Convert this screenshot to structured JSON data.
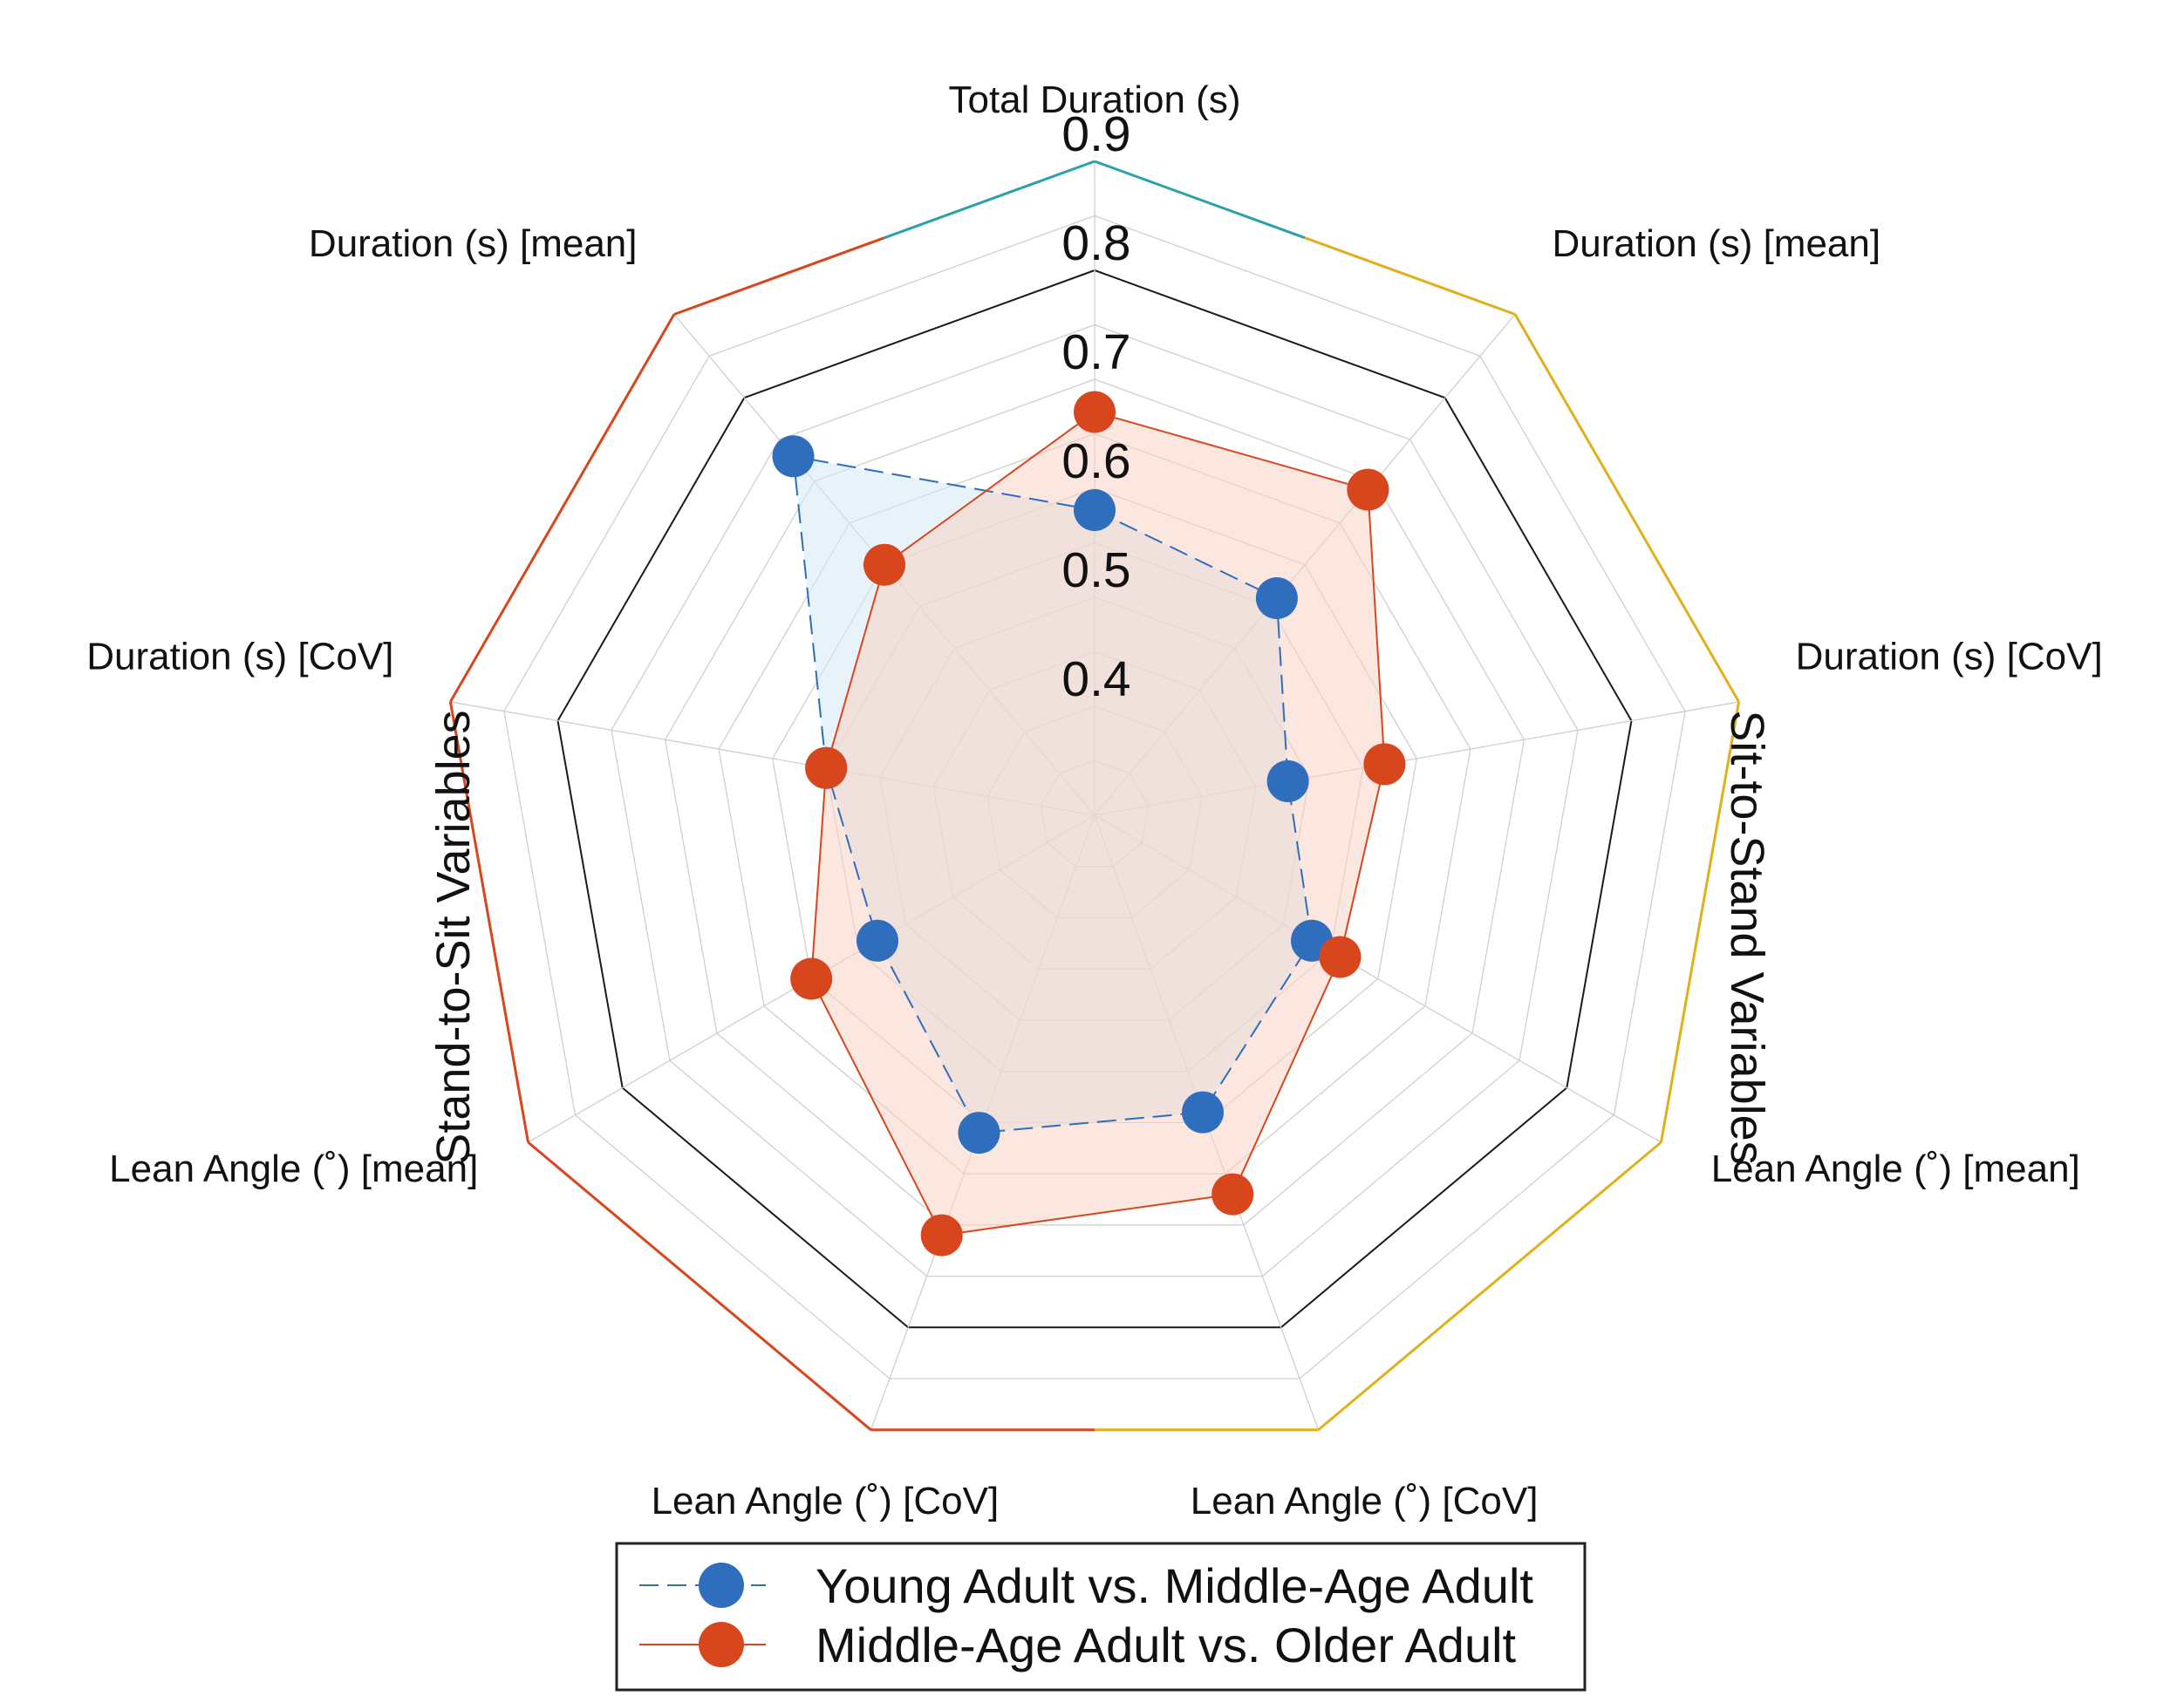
{
  "chart_data": {
    "type": "radar",
    "title": "",
    "axes": [
      {
        "label": "Total Duration (s)",
        "color": "#111111"
      },
      {
        "label": "Duration (s) [mean]",
        "color": "#d8461d"
      },
      {
        "label": "Duration (s) [CoV]",
        "color": "#111111"
      },
      {
        "label": "Lean Angle (˚) [mean]",
        "color": "#111111"
      },
      {
        "label": "Lean Angle (˚) [CoV]",
        "color": "#d8461d"
      },
      {
        "label": "Lean Angle (˚) [CoV]",
        "color": "#d8461d"
      },
      {
        "label": "Lean Angle (˚) [mean]",
        "color": "#111111"
      },
      {
        "label": "Duration (s) [CoV]",
        "color": "#111111"
      },
      {
        "label": "Duration (s) [mean]",
        "color": "#111111"
      }
    ],
    "r_ticks": [
      "0.4",
      "0.5",
      "0.6",
      "0.7",
      "0.8",
      "0.9"
    ],
    "r_tick_values": [
      0.4,
      0.5,
      0.6,
      0.7,
      0.8,
      0.9
    ],
    "r_min": 0.3,
    "r_max": 0.9,
    "series": [
      {
        "name": "Young Adult vs. Middle-Age Adult",
        "color": "#2f6dbd",
        "fill": "#d5e8f4",
        "line_style": "dashed",
        "values": [
          0.58,
          0.56,
          0.48,
          0.53,
          0.59,
          0.61,
          0.53,
          0.55,
          0.73
        ]
      },
      {
        "name": "Middle-Age Adult vs. Older Adult",
        "color": "#d8461d",
        "fill": "#f8d3c5",
        "line_style": "solid",
        "values": [
          0.67,
          0.69,
          0.57,
          0.56,
          0.67,
          0.71,
          0.6,
          0.55,
          0.6
        ]
      }
    ],
    "groups": [
      {
        "label": "Sit-to-Stand Variables",
        "color": "#e0b01c"
      },
      {
        "label": "Stand-to-Sit Variables",
        "color": "#d8461d"
      }
    ],
    "top_marker_color": "#2aa0a8",
    "legend_position": "bottom-center"
  }
}
